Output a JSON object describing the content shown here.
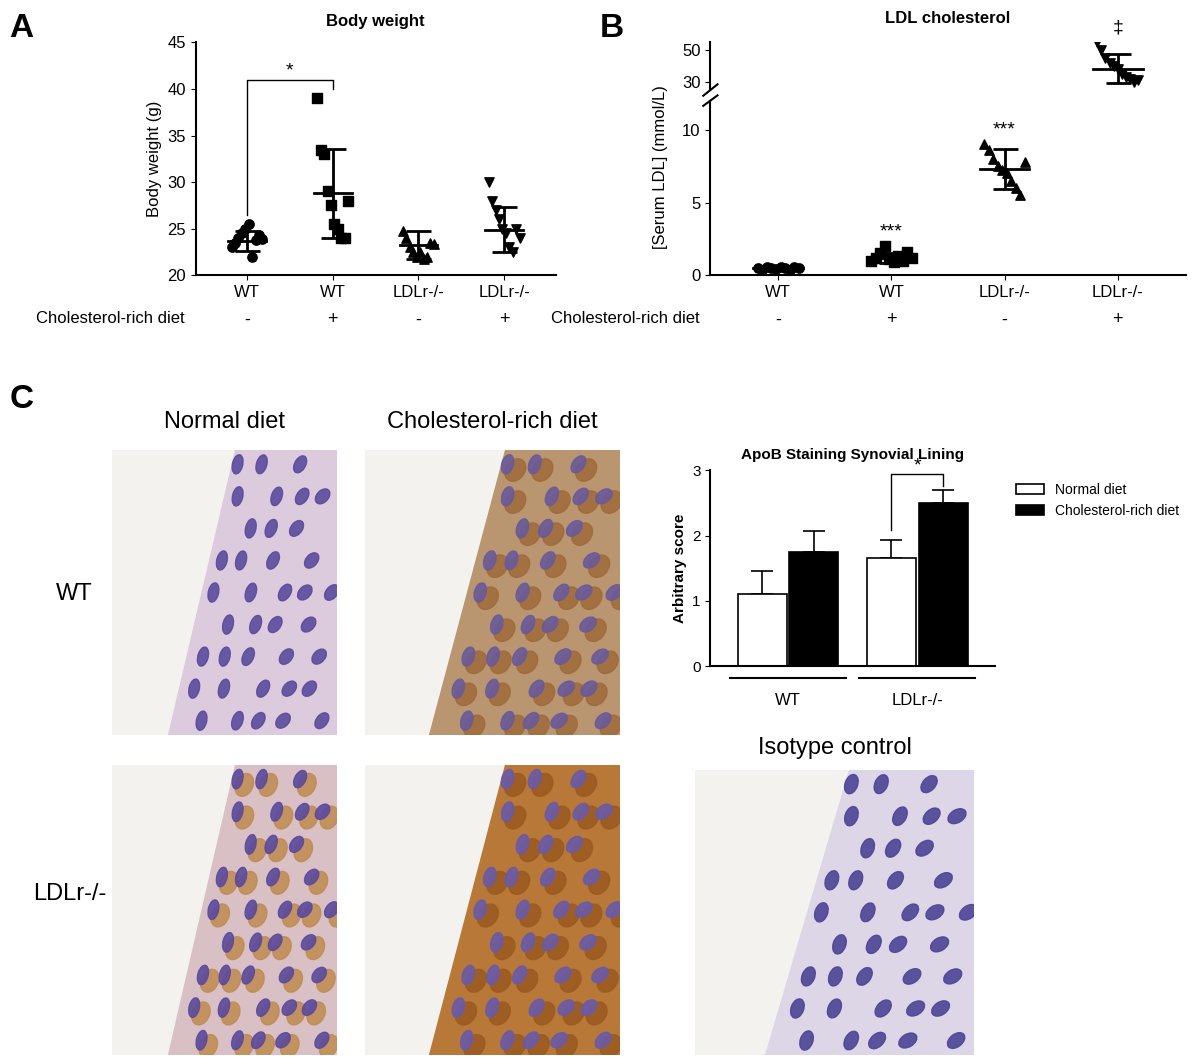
{
  "chart_data": [
    {
      "type": "scatter",
      "title": "Body weight",
      "y_label": "Body weight (g)",
      "categories": [
        "WT",
        "WT",
        "LDLr-/-",
        "LDLr-/-"
      ],
      "row_label": "Cholesterol-rich diet",
      "diet": [
        "-",
        "+",
        "-",
        "+"
      ],
      "marker": [
        "circle",
        "square",
        "triangle_up",
        "triangle_down"
      ],
      "color": "#000000",
      "points": [
        [
          23.0,
          23.5,
          24.0,
          24.5,
          25.0,
          25.5,
          22.0,
          23.8,
          24.3,
          23.9
        ],
        [
          39.0,
          33.5,
          33.0,
          29.0,
          27.5,
          25.5,
          25.0,
          24.0,
          24.0,
          28.0
        ],
        [
          24.8,
          24.0,
          23.0,
          22.5,
          22.0,
          22.5,
          21.8,
          22.0,
          23.5,
          23.4
        ],
        [
          30.0,
          28.0,
          27.0,
          26.0,
          25.0,
          24.5,
          23.0,
          22.5,
          25.0,
          24.0
        ]
      ],
      "mean": [
        23.7,
        28.8,
        23.3,
        24.9
      ],
      "sd": [
        1.1,
        4.8,
        1.5,
        2.4
      ],
      "ylim": [
        20,
        45
      ],
      "yticks": [
        20,
        25,
        30,
        35,
        40,
        45
      ],
      "significance": [
        {
          "from": 0,
          "to": 1,
          "label": "*"
        }
      ]
    },
    {
      "type": "scatter",
      "title": "LDL cholesterol",
      "y_label": "[Serum LDL] (mmol/L)",
      "categories": [
        "WT",
        "WT",
        "LDLr-/-",
        "LDLr-/-"
      ],
      "row_label": "Cholesterol-rich diet",
      "diet": [
        "-",
        "+",
        "-",
        "+"
      ],
      "marker": [
        "circle",
        "square",
        "triangle_up",
        "triangle_down"
      ],
      "color": "#000000",
      "points": [
        [
          0.5,
          0.4,
          0.6,
          0.5,
          0.45,
          0.55,
          0.5,
          0.4,
          0.6,
          0.5
        ],
        [
          1.0,
          1.2,
          1.5,
          2.0,
          1.1,
          0.9,
          1.3,
          1.0,
          1.6,
          1.2
        ],
        [
          9.0,
          8.6,
          8.0,
          7.5,
          7.2,
          7.0,
          6.5,
          6.0,
          5.5,
          7.8
        ],
        [
          55.0,
          50.0,
          45.0,
          42.0,
          40.0,
          38.0,
          35.0,
          33.0,
          32.0,
          30.0,
          31.0
        ]
      ],
      "mean": [
        0.5,
        1.2,
        7.3,
        38.5
      ],
      "sd": [
        0.1,
        0.35,
        1.4,
        9.0
      ],
      "ylim": [
        0,
        12
      ],
      "yticks": [
        0,
        5,
        10
      ],
      "ylim_upper": [
        25,
        55
      ],
      "yticks_upper": [
        30,
        50
      ],
      "annotations": [
        {
          "category": 1,
          "label": "***"
        },
        {
          "category": 2,
          "label": "***"
        },
        {
          "category": 3,
          "label": "‡"
        }
      ]
    },
    {
      "type": "bar",
      "title": "ApoB Staining Synovial Lining",
      "y_label": "Arbitrary score",
      "categories": [
        "WT",
        "LDLr-/-"
      ],
      "series": [
        {
          "name": "Normal diet",
          "color": "#ffffff",
          "values": [
            1.1,
            1.65
          ],
          "errors": [
            0.35,
            0.28
          ]
        },
        {
          "name": "Cholesterol-rich diet",
          "color": "#000000",
          "values": [
            1.75,
            2.5
          ],
          "errors": [
            0.32,
            0.2
          ]
        }
      ],
      "ylim": [
        0,
        3
      ],
      "yticks": [
        0,
        1,
        2,
        3
      ],
      "legend": "upper left",
      "significance": [
        {
          "group": 1,
          "label": "*"
        }
      ]
    }
  ],
  "images": {
    "column_titles": [
      "Normal diet",
      "Cholesterol-rich diet"
    ],
    "row_labels": [
      "WT",
      "LDLr-/-"
    ],
    "control_title": "Isotype control"
  },
  "panel_labels": [
    "A",
    "B",
    "C"
  ]
}
